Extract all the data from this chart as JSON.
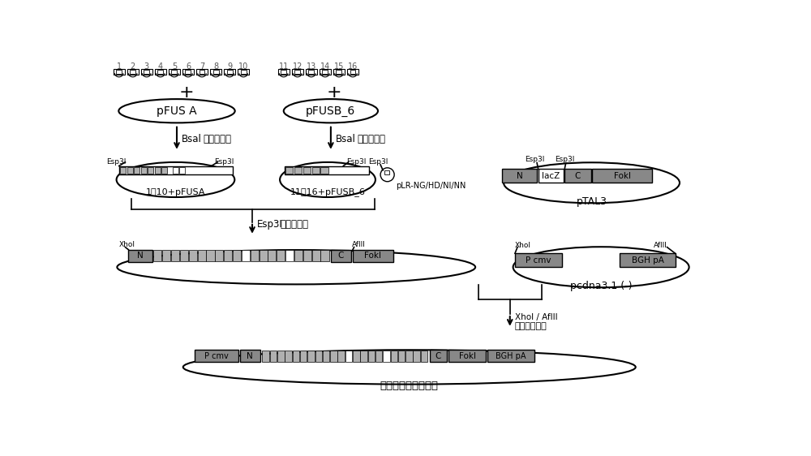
{
  "bg_color": "#ffffff",
  "black": "#000000",
  "white": "#ffffff",
  "gray": "#888888",
  "numbers_row1": [
    "1",
    "2",
    "3",
    "4",
    "5",
    "6",
    "7",
    "8",
    "9",
    "10"
  ],
  "numbers_row2": [
    "11",
    "12",
    "13",
    "14",
    "15",
    "16"
  ],
  "plasmid1_label": "pFUS A",
  "plasmid2_label": "pFUSB_6",
  "step1_label": "Bsal酒切、连接",
  "step2_label": "Bsal酒切、连接",
  "step3_label": "Esp3I酒切、连接",
  "step4_label": "Xhol / AflII双酒切、连接",
  "plasmid_a_label": "1˹10+pFUSA",
  "plasmid_b_label": "11˹16+pFUSB_6",
  "plasmid3_label": "pLR-NG/HD/NI/NN",
  "ptal3_label": "pTAL3",
  "ptal3_sections": [
    "N",
    "lacZ",
    "C",
    "FokI"
  ],
  "pcdna_label": "pcdna3.1 (-)",
  "pcdna_sections_labels": [
    "P cmv",
    "BGH pA"
  ],
  "final_label": "转染细胞终表达载体",
  "esp3i": "Esp3I",
  "xhol": "Xhol",
  "aflii": "AflII",
  "n_label": "N",
  "c_label": "C",
  "foki_label": "FokI",
  "lacz_label": "lacZ",
  "pcmv_label": "P cmv",
  "bghpa_label": "BGH pA"
}
